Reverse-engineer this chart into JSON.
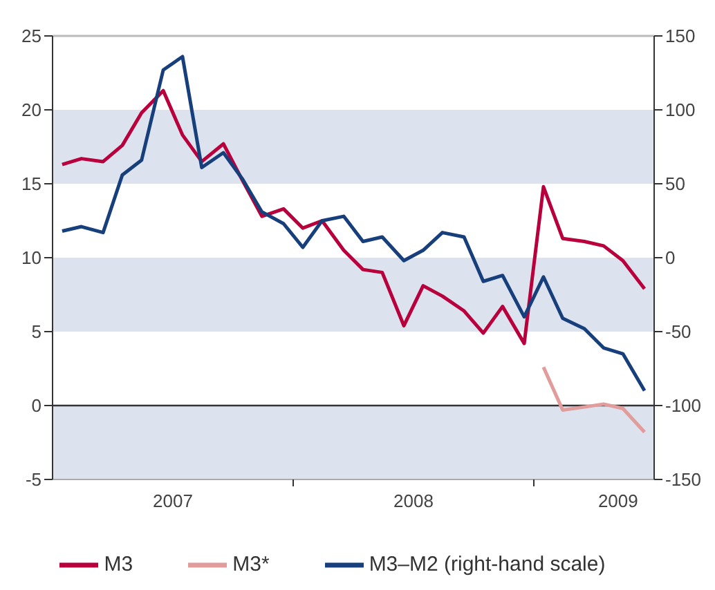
{
  "chart_data": {
    "type": "line",
    "x": [
      2007.04,
      2007.12,
      2007.21,
      2007.29,
      2007.37,
      2007.46,
      2007.54,
      2007.62,
      2007.71,
      2007.79,
      2007.87,
      2007.96,
      2008.04,
      2008.12,
      2008.21,
      2008.29,
      2008.37,
      2008.46,
      2008.54,
      2008.62,
      2008.71,
      2008.79,
      2008.87,
      2008.96,
      2009.04,
      2009.12,
      2009.21,
      2009.29,
      2009.37,
      2009.46
    ],
    "series": [
      {
        "name": "M3",
        "color": "#b8003c",
        "values": [
          16.3,
          16.7,
          16.5,
          17.6,
          19.8,
          21.3,
          18.3,
          16.5,
          17.7,
          15.2,
          12.8,
          13.3,
          12,
          12.5,
          10.5,
          9.2,
          9.0,
          5.4,
          8.1,
          7.4,
          6.4,
          4.9,
          6.7,
          4.2,
          14.8,
          11.3,
          11.1,
          10.8,
          9.8,
          7.9
        ]
      },
      {
        "name": "M3*",
        "color": "#e19c9c",
        "values": [
          null,
          null,
          null,
          null,
          null,
          null,
          null,
          null,
          null,
          null,
          null,
          null,
          null,
          null,
          null,
          null,
          null,
          null,
          null,
          null,
          null,
          null,
          null,
          null,
          2.6,
          -0.3,
          -0.1,
          0.1,
          -0.2,
          -1.8
        ]
      },
      {
        "name": "M3–M2 (right-hand scale)",
        "color": "#173f7c",
        "axis": "y2",
        "values": [
          18,
          21,
          17,
          56,
          66,
          127,
          136,
          61,
          71,
          53,
          31,
          23,
          7,
          25,
          28,
          11,
          14,
          -2,
          5,
          17,
          14,
          -16,
          -12,
          -40,
          -13,
          -41,
          -48,
          -61,
          -65,
          -90
        ]
      }
    ],
    "xlim": [
      2007,
      2009.5
    ],
    "xticks": [
      {
        "value": 2007.5,
        "label": "2007"
      },
      {
        "value": 2008,
        "label": null
      },
      {
        "value": 2008.5,
        "label": "2008"
      },
      {
        "value": 2009,
        "label": null
      },
      {
        "value": 2009.35,
        "label": "2009"
      }
    ],
    "ylim": [
      -5,
      25
    ],
    "yticks": [
      -5,
      0,
      5,
      10,
      15,
      20,
      25
    ],
    "y2lim": [
      -150,
      150
    ],
    "y2ticks": [
      -150,
      -100,
      -50,
      0,
      50,
      100,
      150
    ],
    "bands": [
      {
        "axis": "y",
        "from": 15,
        "to": 20,
        "color": "#dde3ee"
      },
      {
        "axis": "y",
        "from": 5,
        "to": 10,
        "color": "#dde3ee"
      },
      {
        "axis": "y",
        "from": -5,
        "to": 0,
        "color": "#dde3ee"
      }
    ],
    "ref_lines": [
      {
        "axis": "y",
        "value": 0,
        "color": "#333333"
      }
    ],
    "legend": "bottom",
    "marker": "none",
    "line_style": "solid"
  }
}
